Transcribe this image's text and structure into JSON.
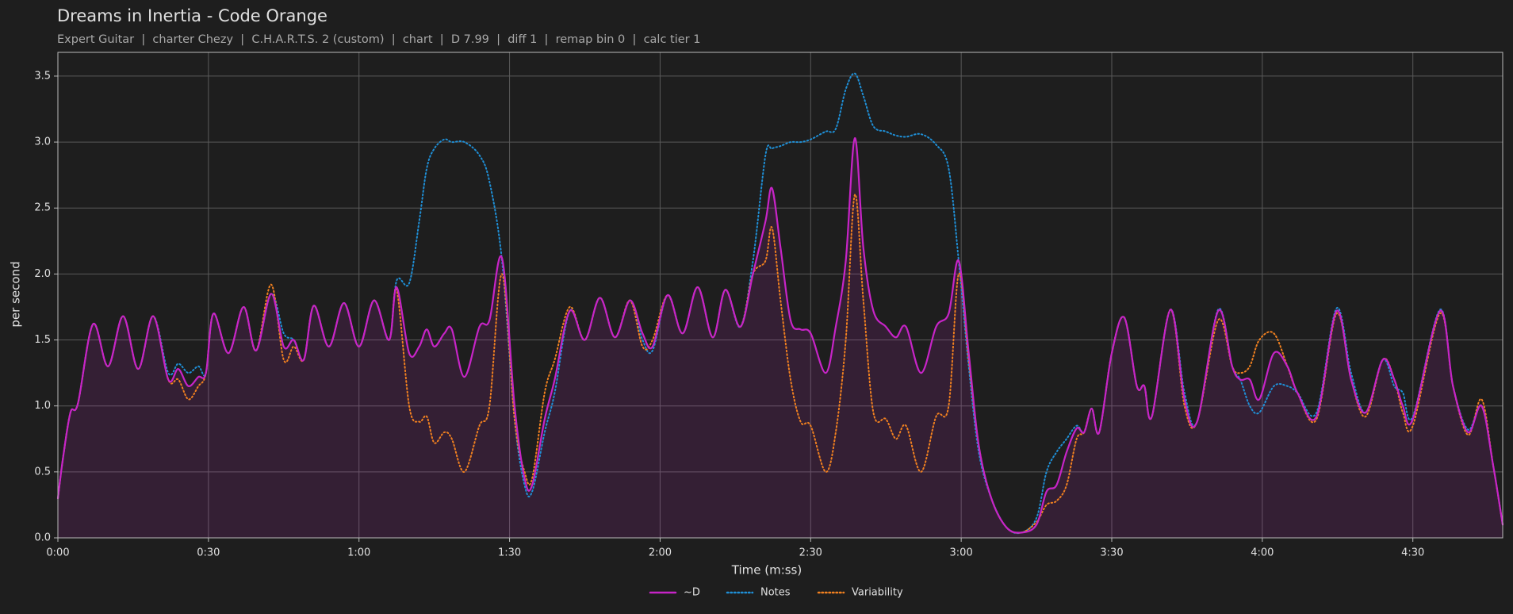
{
  "chart_data": {
    "type": "line",
    "title": "Dreams in Inertia - Code Orange",
    "subtitle": "Expert Guitar  |  charter Chezy  |  C.H.A.R.T.S. 2 (custom)  |  chart  |  D 7.99  |  diff 1  |  remap bin 0  |  calc tier 1",
    "x_label": "Time (m:ss)",
    "y_label": "per second",
    "x": [
      0,
      1,
      2.5,
      4,
      7,
      10,
      13,
      16,
      19,
      22,
      24,
      26,
      28,
      29.5,
      31,
      34,
      37,
      39.5,
      42.5,
      45,
      47,
      49,
      51,
      54,
      57,
      60,
      63,
      66,
      67.5,
      70,
      72,
      73.5,
      75,
      77,
      78.5,
      81,
      84,
      86,
      88.5,
      91,
      93,
      94.5,
      97,
      99,
      102,
      105,
      108,
      111,
      114,
      116.5,
      118.5,
      121.5,
      124.5,
      127.5,
      130.5,
      133,
      136,
      138.5,
      141,
      142.3,
      144,
      146,
      148,
      150,
      153,
      155,
      157,
      158.8,
      160.5,
      162.5,
      165,
      167,
      169,
      172,
      175,
      177.5,
      179.5,
      181.5,
      183.5,
      186,
      189,
      192,
      195,
      197,
      199,
      201,
      203,
      204.5,
      206,
      207.5,
      210,
      212.5,
      215,
      216.5,
      218,
      221.7,
      224.5,
      227,
      231.2,
      234,
      235.6,
      237.5,
      239.4,
      242.3,
      245,
      247,
      250.8,
      254.8,
      257.7,
      260.6,
      264,
      266.3,
      268,
      270,
      275.4,
      278,
      281,
      283.7,
      286,
      287.9
    ],
    "series": [
      {
        "name": "~D",
        "color": "#c724c7",
        "style": "solid",
        "fill": true,
        "values": [
          0.3,
          0.6,
          0.95,
          1.02,
          1.62,
          1.3,
          1.68,
          1.28,
          1.68,
          1.2,
          1.28,
          1.15,
          1.22,
          1.25,
          1.7,
          1.4,
          1.75,
          1.42,
          1.85,
          1.45,
          1.5,
          1.35,
          1.76,
          1.45,
          1.78,
          1.45,
          1.8,
          1.5,
          1.9,
          1.4,
          1.45,
          1.58,
          1.45,
          1.55,
          1.58,
          1.22,
          1.6,
          1.65,
          2.12,
          1.0,
          0.45,
          0.4,
          0.9,
          1.2,
          1.72,
          1.5,
          1.82,
          1.52,
          1.8,
          1.55,
          1.45,
          1.84,
          1.55,
          1.9,
          1.52,
          1.88,
          1.6,
          2.0,
          2.4,
          2.65,
          2.2,
          1.65,
          1.58,
          1.55,
          1.25,
          1.6,
          2.1,
          3.03,
          2.2,
          1.72,
          1.6,
          1.52,
          1.6,
          1.25,
          1.6,
          1.7,
          2.1,
          1.4,
          0.7,
          0.3,
          0.08,
          0.04,
          0.1,
          0.35,
          0.4,
          0.65,
          0.83,
          0.8,
          0.98,
          0.8,
          1.4,
          1.67,
          1.15,
          1.15,
          0.92,
          1.73,
          1.05,
          0.88,
          1.72,
          1.3,
          1.2,
          1.2,
          1.05,
          1.4,
          1.3,
          1.1,
          0.92,
          1.72,
          1.2,
          0.95,
          1.35,
          1.2,
          1.0,
          0.9,
          1.72,
          1.15,
          0.8,
          1.0,
          0.55,
          0.1
        ]
      },
      {
        "name": "Notes",
        "color": "#1f8fd6",
        "style": "dotted",
        "values": [
          0.3,
          0.6,
          0.95,
          1.02,
          1.62,
          1.3,
          1.68,
          1.28,
          1.68,
          1.25,
          1.32,
          1.25,
          1.3,
          1.25,
          1.7,
          1.4,
          1.75,
          1.42,
          1.85,
          1.55,
          1.5,
          1.35,
          1.76,
          1.45,
          1.78,
          1.45,
          1.8,
          1.5,
          1.95,
          1.93,
          2.4,
          2.8,
          2.95,
          3.02,
          3.0,
          3.0,
          2.9,
          2.7,
          2.1,
          0.9,
          0.4,
          0.35,
          0.8,
          1.1,
          1.72,
          1.5,
          1.82,
          1.52,
          1.8,
          1.5,
          1.42,
          1.84,
          1.55,
          1.9,
          1.52,
          1.88,
          1.6,
          2.1,
          2.9,
          2.95,
          2.97,
          3.0,
          3.0,
          3.02,
          3.08,
          3.1,
          3.4,
          3.52,
          3.35,
          3.12,
          3.08,
          3.05,
          3.04,
          3.06,
          2.98,
          2.8,
          2.1,
          1.3,
          0.65,
          0.3,
          0.08,
          0.04,
          0.15,
          0.5,
          0.65,
          0.75,
          0.85,
          0.8,
          0.98,
          0.8,
          1.4,
          1.67,
          1.15,
          1.15,
          0.92,
          1.73,
          1.1,
          0.88,
          1.73,
          1.3,
          1.2,
          1.0,
          0.95,
          1.15,
          1.15,
          1.1,
          0.95,
          1.74,
          1.25,
          0.95,
          1.35,
          1.15,
          1.1,
          0.92,
          1.73,
          1.15,
          0.82,
          1.0,
          0.55,
          0.1
        ]
      },
      {
        "name": "Variability",
        "color": "#f08020",
        "style": "dotted",
        "values": [
          0.3,
          0.6,
          0.95,
          1.02,
          1.62,
          1.3,
          1.68,
          1.28,
          1.68,
          1.2,
          1.2,
          1.05,
          1.15,
          1.25,
          1.7,
          1.4,
          1.75,
          1.42,
          1.92,
          1.35,
          1.45,
          1.35,
          1.76,
          1.45,
          1.78,
          1.45,
          1.8,
          1.5,
          1.88,
          1.0,
          0.88,
          0.92,
          0.72,
          0.8,
          0.75,
          0.5,
          0.85,
          1.0,
          2.0,
          0.9,
          0.5,
          0.45,
          1.1,
          1.35,
          1.75,
          1.5,
          1.82,
          1.52,
          1.8,
          1.45,
          1.5,
          1.84,
          1.55,
          1.9,
          1.52,
          1.88,
          1.6,
          2.0,
          2.1,
          2.35,
          1.8,
          1.2,
          0.88,
          0.85,
          0.5,
          0.8,
          1.5,
          2.6,
          1.8,
          0.95,
          0.9,
          0.75,
          0.85,
          0.5,
          0.92,
          1.0,
          2.0,
          1.35,
          0.7,
          0.3,
          0.08,
          0.04,
          0.12,
          0.25,
          0.28,
          0.4,
          0.75,
          0.8,
          0.98,
          0.8,
          1.4,
          1.67,
          1.15,
          1.15,
          0.92,
          1.73,
          1.0,
          0.88,
          1.65,
          1.3,
          1.25,
          1.3,
          1.5,
          1.55,
          1.3,
          1.1,
          0.9,
          1.7,
          1.2,
          0.92,
          1.35,
          1.2,
          0.95,
          0.85,
          1.7,
          1.15,
          0.78,
          1.05,
          0.55,
          0.1
        ]
      }
    ],
    "xlim": [
      0,
      287.9
    ],
    "ylim": [
      0,
      3.68
    ],
    "xticks": [
      {
        "value": 0,
        "label": "0:00"
      },
      {
        "value": 30,
        "label": "0:30"
      },
      {
        "value": 60,
        "label": "1:00"
      },
      {
        "value": 90,
        "label": "1:30"
      },
      {
        "value": 120,
        "label": "2:00"
      },
      {
        "value": 150,
        "label": "2:30"
      },
      {
        "value": 180,
        "label": "3:00"
      },
      {
        "value": 210,
        "label": "3:30"
      },
      {
        "value": 240,
        "label": "4:00"
      },
      {
        "value": 270,
        "label": "4:30"
      }
    ],
    "yticks": [
      {
        "value": 0,
        "label": "0.0"
      },
      0.5,
      {
        "value": 1,
        "label": "1.0"
      },
      1.5,
      {
        "value": 2,
        "label": "2.0"
      },
      2.5,
      {
        "value": 3,
        "label": "3.0"
      },
      3.5
    ],
    "grid": true,
    "legend": "bottom"
  }
}
